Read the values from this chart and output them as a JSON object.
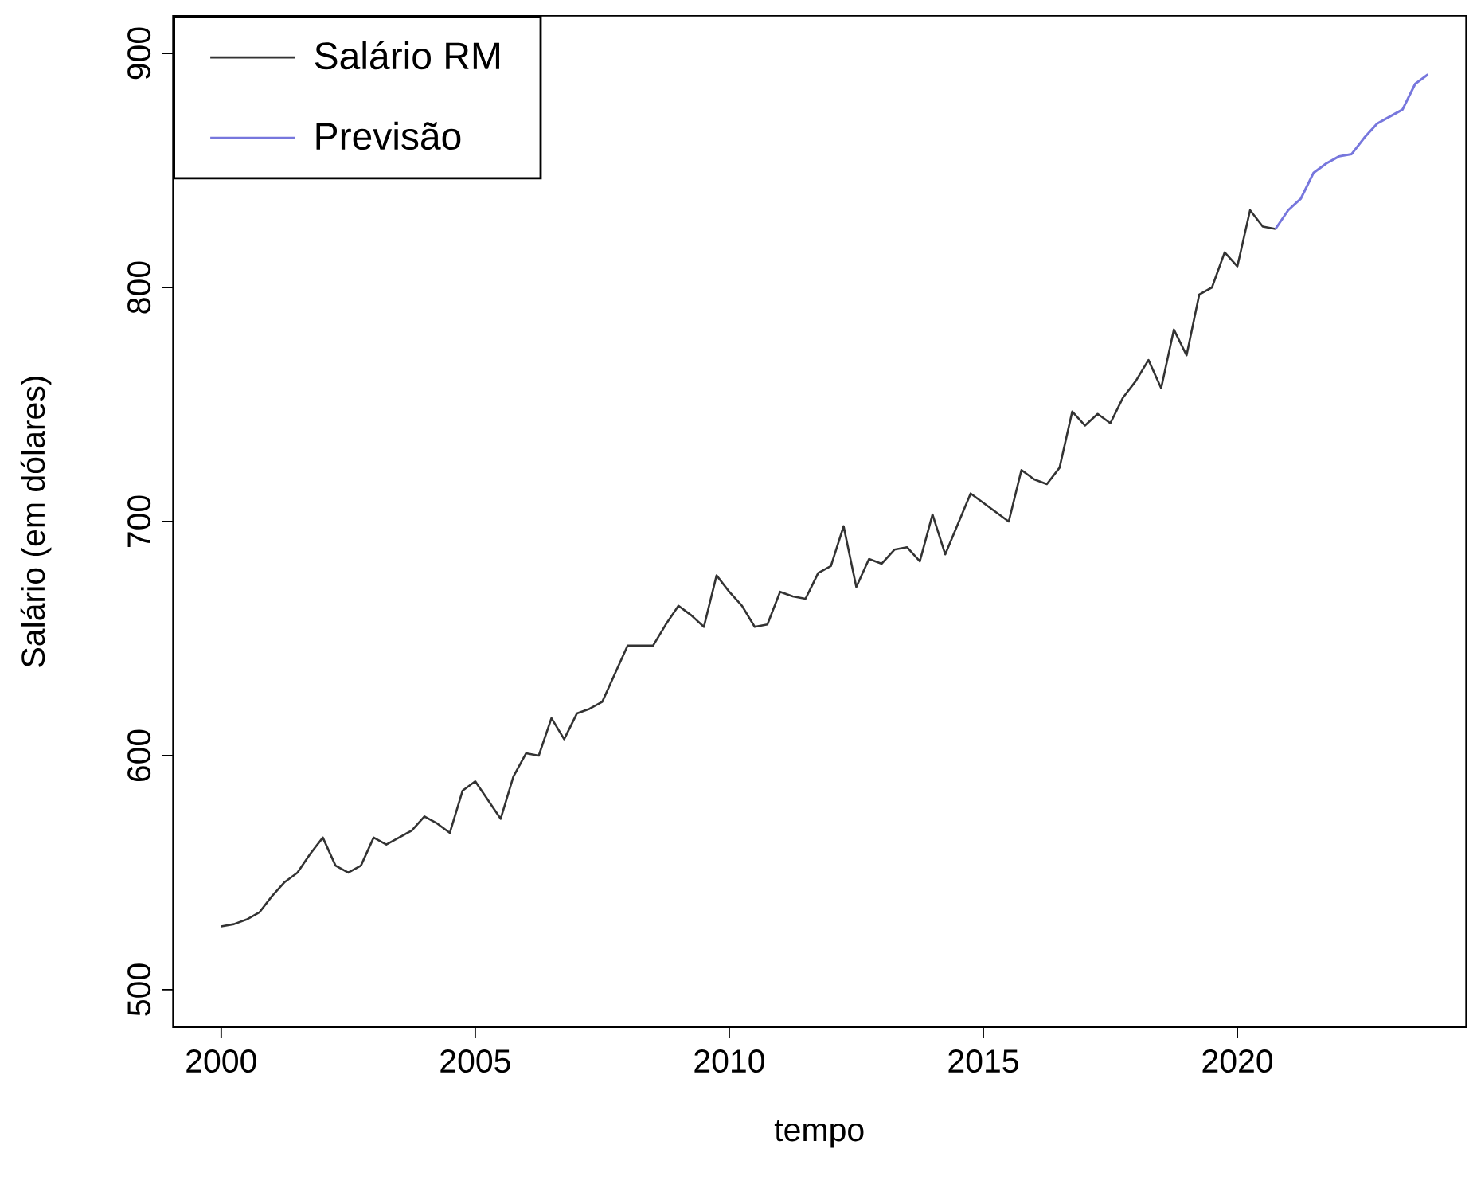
{
  "chart_data": {
    "type": "line",
    "xlabel": "tempo",
    "ylabel": "Salário (em dólares)",
    "x": [
      2000,
      2000.25,
      2000.5,
      2000.75,
      2001,
      2001.25,
      2001.5,
      2001.75,
      2002,
      2002.25,
      2002.5,
      2002.75,
      2003,
      2003.25,
      2003.5,
      2003.75,
      2004,
      2004.25,
      2004.5,
      2004.75,
      2005,
      2005.25,
      2005.5,
      2005.75,
      2006,
      2006.25,
      2006.5,
      2006.75,
      2007,
      2007.25,
      2007.5,
      2007.75,
      2008,
      2008.25,
      2008.5,
      2008.75,
      2009,
      2009.25,
      2009.5,
      2009.75,
      2010,
      2010.25,
      2010.5,
      2010.75,
      2011,
      2011.25,
      2011.5,
      2011.75,
      2012,
      2012.25,
      2012.5,
      2012.75,
      2013,
      2013.25,
      2013.5,
      2013.75,
      2014,
      2014.25,
      2014.5,
      2014.75,
      2015,
      2015.25,
      2015.5,
      2015.75,
      2016,
      2016.25,
      2016.5,
      2016.75,
      2017,
      2017.25,
      2017.5,
      2017.75,
      2018,
      2018.25,
      2018.5,
      2018.75,
      2019,
      2019.25,
      2019.5,
      2019.75,
      2020,
      2020.25,
      2020.5,
      2020.75
    ],
    "series": [
      {
        "name": "Salário RM",
        "color": "#333333",
        "values": [
          527,
          528,
          530,
          533,
          540,
          546,
          550,
          558,
          565,
          553,
          550,
          553,
          565,
          562,
          565,
          568,
          574,
          571,
          567,
          585,
          589,
          581,
          573,
          591,
          601,
          600,
          616,
          607,
          618,
          620,
          623,
          635,
          647,
          647,
          647,
          656,
          664,
          660,
          655,
          677,
          670,
          664,
          655,
          656,
          670,
          668,
          667,
          678,
          681,
          698,
          672,
          684,
          682,
          688,
          689,
          683,
          703,
          686,
          699,
          712,
          708,
          704,
          700,
          722,
          718,
          716,
          723,
          747,
          741,
          746,
          742,
          753,
          760,
          769,
          757,
          782,
          771,
          797,
          800,
          815,
          809,
          833,
          826,
          825
        ]
      },
      {
        "name": "Previsão",
        "color": "#7777dd",
        "x": [
          2020.75,
          2021,
          2021.25,
          2021.5,
          2021.75,
          2022,
          2022.25,
          2022.5,
          2022.75,
          2023,
          2023.25,
          2023.5,
          2023.75
        ],
        "values": [
          825,
          833,
          838,
          849,
          853,
          856,
          857,
          864,
          870,
          873,
          876,
          887,
          891
        ]
      }
    ],
    "xlim": [
      1999.05,
      2024.5
    ],
    "ylim": [
      484,
      916
    ],
    "xticks": [
      2000,
      2005,
      2010,
      2015,
      2020
    ],
    "yticks": [
      500,
      600,
      700,
      800,
      900
    ],
    "legend": "top left",
    "marker": "none",
    "line_style": "solid"
  }
}
